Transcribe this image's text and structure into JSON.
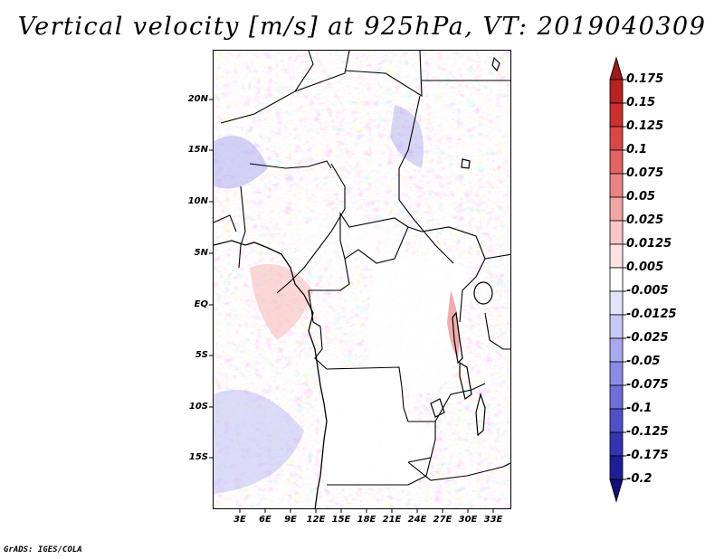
{
  "title": "Vertical velocity [m/s] at 925hPa, VT: 2019040309",
  "credit": "GrADS: IGES/COLA",
  "latitude_ticks": [
    "20N",
    "15N",
    "10N",
    "5N",
    "EQ",
    "5S",
    "10S",
    "15S"
  ],
  "longitude_ticks": [
    "3E",
    "6E",
    "9E",
    "12E",
    "15E",
    "18E",
    "21E",
    "24E",
    "27E",
    "30E",
    "33E"
  ],
  "colorbar": {
    "labels": [
      "0.175",
      "0.15",
      "0.125",
      "0.1",
      "0.075",
      "0.05",
      "0.025",
      "0.0125",
      "0.005",
      "-0.005",
      "-0.0125",
      "-0.025",
      "-0.05",
      "-0.075",
      "-0.1",
      "-0.125",
      "-0.175",
      "-0.2"
    ],
    "colors": [
      "#a01a1a",
      "#b72222",
      "#cc3030",
      "#d94747",
      "#e26464",
      "#ea8484",
      "#f2a5a5",
      "#f8c6c6",
      "#fce3e3",
      "#ffffff",
      "#e3e3fb",
      "#c8c8f6",
      "#a9a9ef",
      "#8b8be6",
      "#6f6fd9",
      "#5050c8",
      "#3434b0",
      "#1e1e96",
      "#10107a"
    ]
  }
}
